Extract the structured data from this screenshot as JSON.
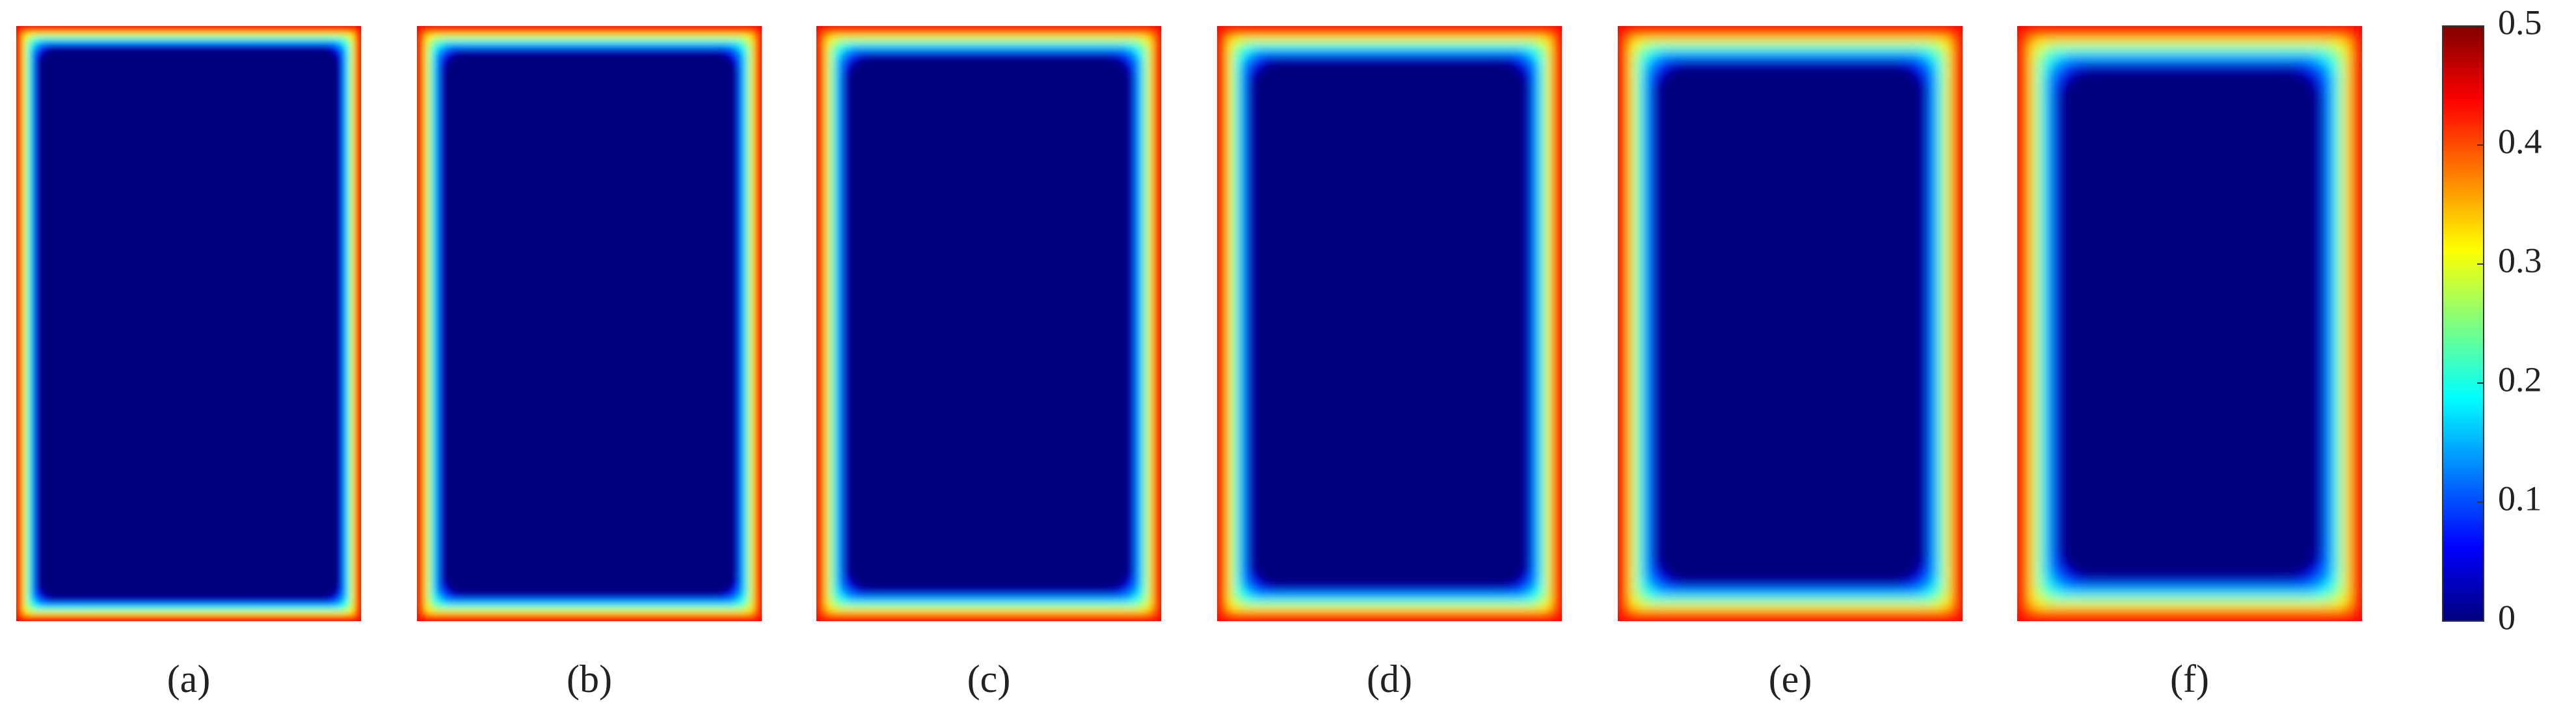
{
  "chart_data": {
    "type": "heatmap",
    "colormap": "jet",
    "panels": [
      "(a)",
      "(b)",
      "(c)",
      "(d)",
      "(e)",
      "(f)"
    ],
    "colorbar": {
      "clim": [
        0,
        0.5
      ],
      "ticks": [
        0,
        0.1,
        0.2,
        0.3,
        0.4,
        0.5
      ]
    }
  }
}
